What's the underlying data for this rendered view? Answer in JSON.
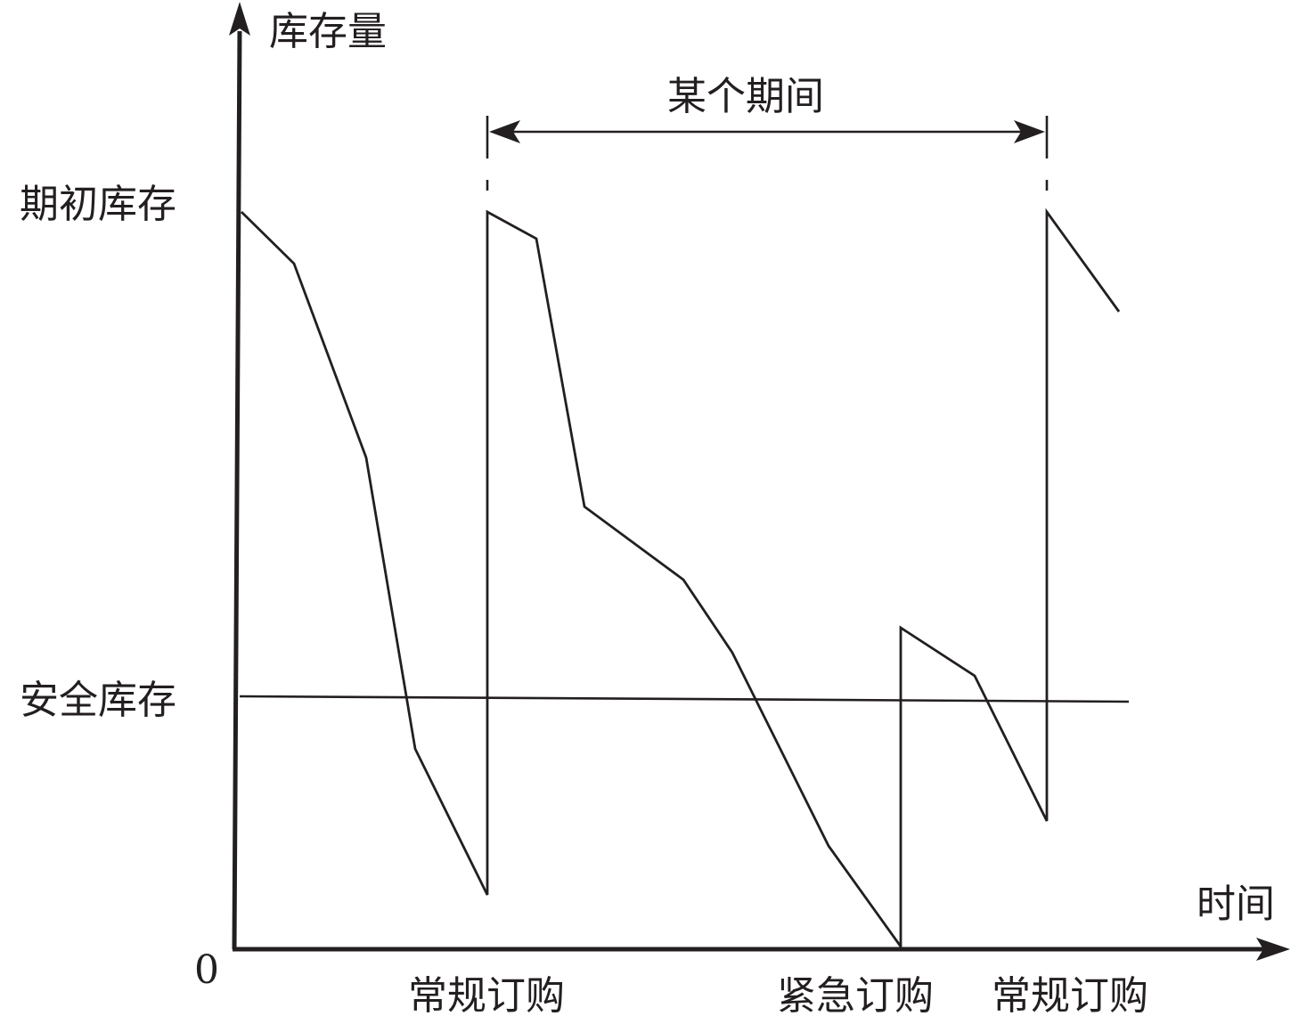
{
  "labels": {
    "y_axis": "库存量",
    "x_axis": "时间",
    "origin": "0",
    "initial_stock": "期初库存",
    "safety_stock": "安全库存",
    "period": "某个期间",
    "regular_order_1": "常规订购",
    "emergency_order": "紧急订购",
    "regular_order_2": "常规订购"
  },
  "colors": {
    "ink": "#231f20",
    "background": "#ffffff"
  }
}
